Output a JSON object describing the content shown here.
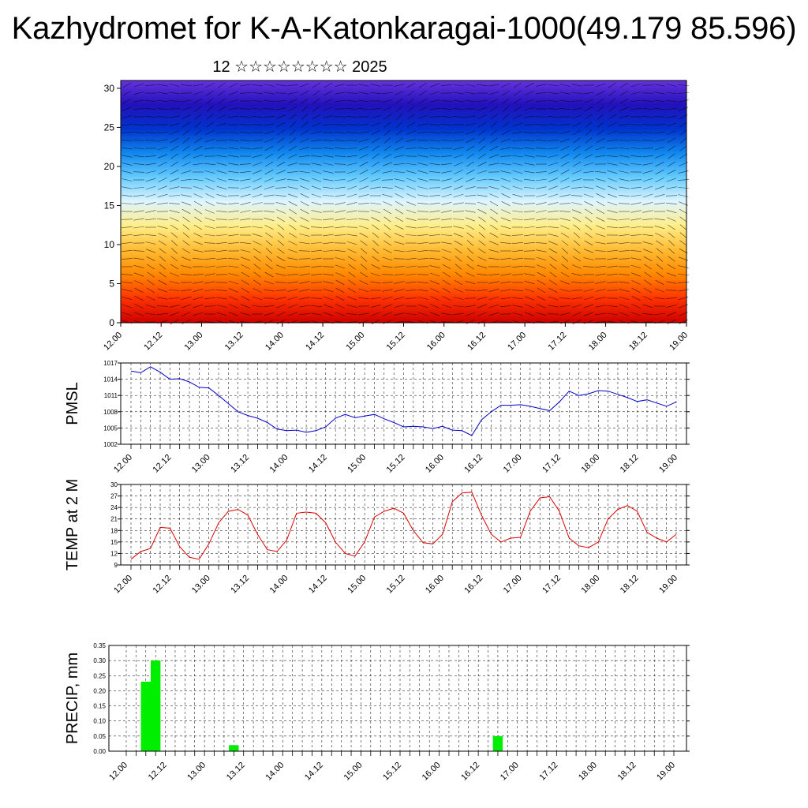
{
  "header": {
    "title": "Kazhydromet for K-A-Katonkaragai-1000(49.179 85.596)",
    "subtitle": "12 ☆☆☆☆☆☆☆☆ 2025"
  },
  "chart_data": [
    {
      "type": "heatmap",
      "title": "",
      "xlabel": "",
      "ylabel": "",
      "x_ticks": [
        "12.00",
        "12.12",
        "13.00",
        "13.12",
        "14.00",
        "14.12",
        "15.00",
        "15.12",
        "16.00",
        "16.12",
        "17.00",
        "17.12",
        "18.00",
        "18.12",
        "19.00"
      ],
      "y_ticks": [
        0,
        5,
        10,
        15,
        20,
        25,
        30
      ],
      "ylim": [
        0,
        31
      ],
      "colormap": [
        "#cc0000",
        "#ff3300",
        "#ff8800",
        "#ffbb33",
        "#ffee88",
        "#dff5ff",
        "#66ccff",
        "#1188ee",
        "#0033cc",
        "#2211bb",
        "#6633dd"
      ],
      "overlay": "wind barbs",
      "grid": false
    },
    {
      "type": "line",
      "title": "",
      "ylabel": "PMSL",
      "x_ticks": [
        "12.00",
        "12.12",
        "13.00",
        "13.12",
        "14.00",
        "14.12",
        "15.00",
        "15.12",
        "16.00",
        "16.12",
        "17.00",
        "17.12",
        "18.00",
        "18.12",
        "19.00"
      ],
      "y_ticks": [
        1002,
        1005,
        1008,
        1011,
        1014,
        1017
      ],
      "ylim": [
        1002,
        1017
      ],
      "color": "#0000cc",
      "grid": true,
      "values": [
        1015.5,
        1015.2,
        1016.3,
        1015.3,
        1014.0,
        1014.1,
        1013.5,
        1012.5,
        1012.4,
        1011.0,
        1009.5,
        1008.0,
        1007.3,
        1006.8,
        1006.0,
        1004.8,
        1004.5,
        1004.6,
        1004.2,
        1004.5,
        1005.2,
        1006.8,
        1007.5,
        1006.9,
        1007.2,
        1007.5,
        1006.7,
        1006.0,
        1005.2,
        1005.3,
        1005.2,
        1004.9,
        1005.3,
        1004.6,
        1004.5,
        1003.6,
        1006.5,
        1008.0,
        1009.2,
        1009.2,
        1009.3,
        1009.0,
        1008.6,
        1008.2,
        1009.8,
        1011.8,
        1011.0,
        1011.3,
        1011.9,
        1011.8,
        1011.2,
        1010.6,
        1009.9,
        1010.2,
        1009.6,
        1009.0,
        1009.8
      ]
    },
    {
      "type": "line",
      "title": "",
      "ylabel": "TEMP at 2 M",
      "x_ticks": [
        "12.00",
        "12.12",
        "13.00",
        "13.12",
        "14.00",
        "14.12",
        "15.00",
        "15.12",
        "16.00",
        "16.12",
        "17.00",
        "17.12",
        "18.00",
        "18.12",
        "19.00"
      ],
      "y_ticks": [
        9,
        12,
        15,
        18,
        21,
        24,
        27,
        30
      ],
      "ylim": [
        9,
        30
      ],
      "color": "#dd0000",
      "grid": true,
      "values": [
        10.5,
        12.5,
        13.3,
        18.8,
        18.6,
        13.8,
        11.0,
        10.5,
        14.5,
        20.0,
        23.0,
        23.5,
        22.0,
        17.0,
        13.0,
        12.5,
        15.5,
        22.5,
        22.8,
        22.5,
        20.0,
        15.0,
        12.0,
        11.3,
        15.0,
        21.5,
        23.0,
        23.8,
        22.5,
        18.0,
        14.8,
        14.5,
        17.0,
        25.5,
        27.8,
        28.0,
        22.0,
        17.0,
        15.0,
        16.0,
        16.2,
        23.0,
        26.5,
        26.8,
        23.0,
        16.0,
        14.0,
        13.5,
        15.0,
        21.0,
        23.5,
        24.5,
        23.0,
        17.5,
        16.0,
        15.0,
        17.0
      ]
    },
    {
      "type": "bar",
      "title": "",
      "ylabel": "PRECIP, mm",
      "x_ticks": [
        "12.00",
        "12.12",
        "13.00",
        "13.12",
        "14.00",
        "14.12",
        "15.00",
        "15.12",
        "16.00",
        "16.12",
        "17.00",
        "17.12",
        "18.00",
        "18.12",
        "19.00"
      ],
      "y_ticks": [
        "0.00",
        "0.05",
        "0.10",
        "0.15",
        "0.20",
        "0.25",
        "0.30",
        "0.35"
      ],
      "ylim": [
        0,
        0.35
      ],
      "color": "#00ee00",
      "grid": true,
      "bars": [
        {
          "hour": 6,
          "value": 0.23
        },
        {
          "hour": 9,
          "value": 0.3
        },
        {
          "hour": 33,
          "value": 0.02
        },
        {
          "hour": 114,
          "value": 0.05
        }
      ]
    }
  ]
}
